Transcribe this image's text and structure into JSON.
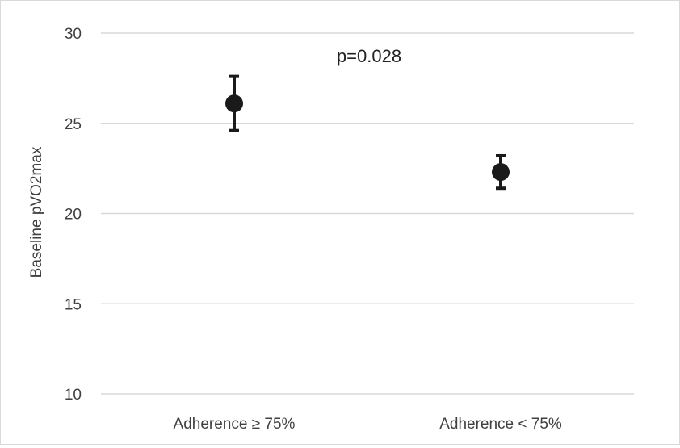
{
  "chart_data": {
    "type": "scatter",
    "categories": [
      "Adherence ≥ 75%",
      "Adherence < 75%"
    ],
    "series": [
      {
        "values": [
          26.1,
          22.3
        ],
        "error_low": [
          24.6,
          21.4
        ],
        "error_high": [
          27.6,
          23.2
        ]
      }
    ],
    "ylabel": "Baseline pVO2max",
    "ylim": [
      10,
      30
    ],
    "yticks": [
      10,
      15,
      20,
      25,
      30
    ],
    "grid": true,
    "annotation": "p=0.028",
    "marker_color": "#1a1a1a",
    "grid_color": "#d9d9d9"
  }
}
